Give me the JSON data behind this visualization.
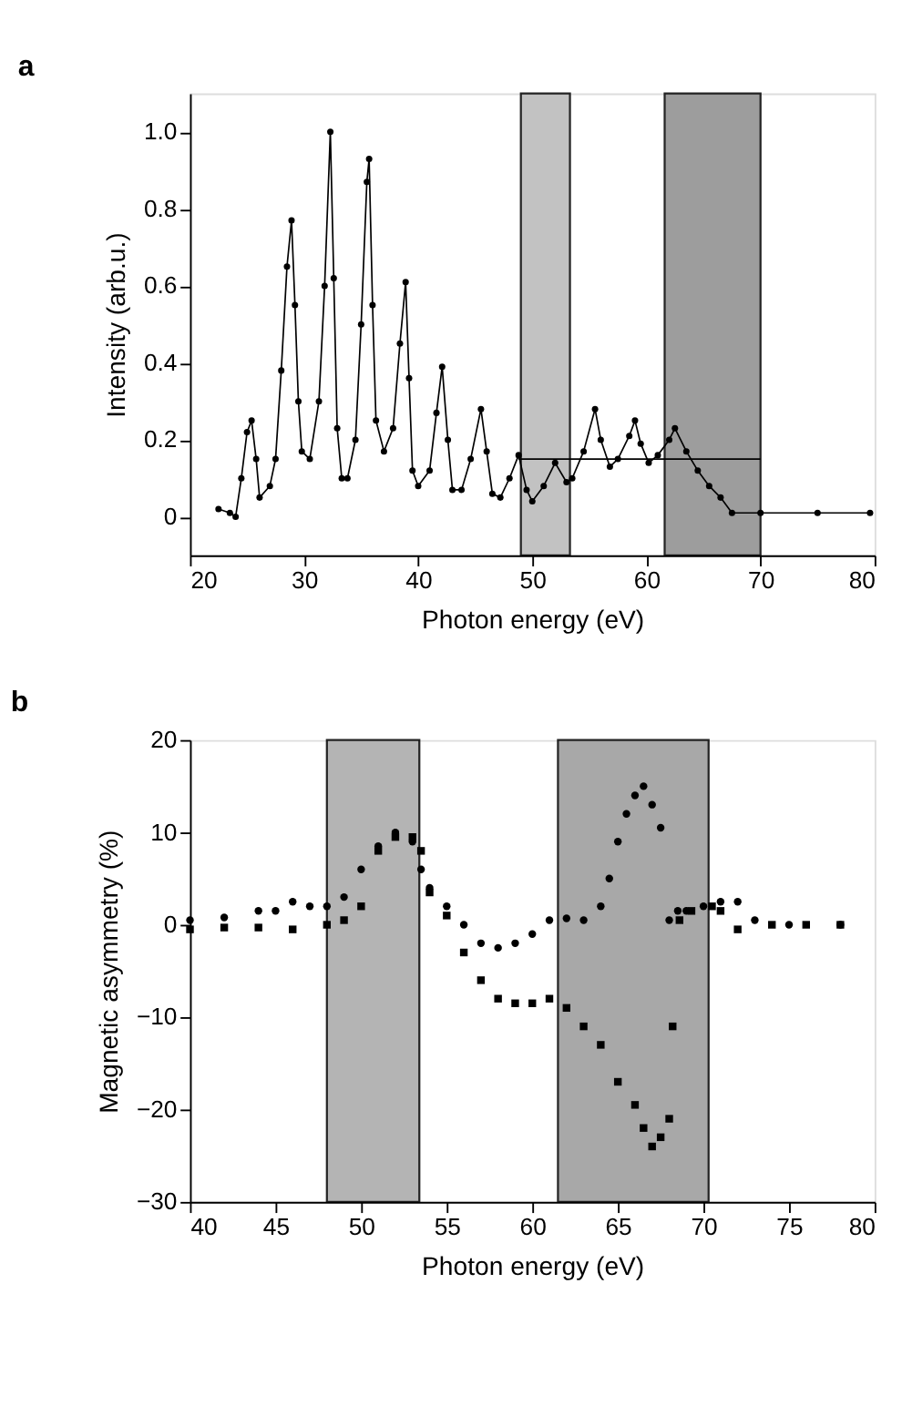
{
  "chart_data": [
    {
      "type": "line",
      "title": "a",
      "xlabel": "Photon energy (eV)",
      "ylabel": "Intensity (arb.u.)",
      "xlim": [
        20,
        80
      ],
      "ylim": [
        -0.1,
        1.1
      ],
      "xticks": [
        20,
        30,
        40,
        50,
        60,
        70,
        80
      ],
      "yticks": [
        0,
        0.2,
        0.4,
        0.6,
        0.8,
        {
          "value": 1,
          "label": "1.0"
        }
      ],
      "grid": false,
      "marker": "circle",
      "series": [
        {
          "color": "#000000",
          "x": [
            22.5,
            23.5,
            24,
            24.5,
            25,
            25.4,
            25.8,
            26.1,
            27,
            27.5,
            28,
            28.5,
            28.9,
            29.2,
            29.5,
            29.8,
            30.5,
            31.3,
            31.8,
            32.3,
            32.6,
            32.9,
            33.3,
            33.8,
            34.5,
            35,
            35.5,
            35.7,
            36,
            36.3,
            37,
            37.8,
            38.4,
            38.9,
            39.2,
            39.5,
            40,
            41,
            41.6,
            42.1,
            42.6,
            43,
            43.8,
            44.6,
            45.5,
            46,
            46.5,
            47.2,
            48,
            48.8,
            49.5,
            50,
            51,
            52,
            53,
            53.5,
            54.5,
            55.5,
            56,
            56.8,
            57.5,
            58.5,
            59,
            59.5,
            60.2,
            61,
            62,
            62.5,
            63.5,
            64.5,
            65.5,
            66.5,
            67.5,
            70,
            75,
            79.6
          ],
          "values": [
            0.02,
            0.01,
            0.0,
            0.1,
            0.22,
            0.25,
            0.15,
            0.05,
            0.08,
            0.15,
            0.38,
            0.65,
            0.77,
            0.55,
            0.3,
            0.17,
            0.15,
            0.3,
            0.6,
            1.0,
            0.62,
            0.23,
            0.1,
            0.1,
            0.2,
            0.5,
            0.87,
            0.93,
            0.55,
            0.25,
            0.17,
            0.23,
            0.45,
            0.61,
            0.36,
            0.12,
            0.08,
            0.12,
            0.27,
            0.39,
            0.2,
            0.07,
            0.07,
            0.15,
            0.28,
            0.17,
            0.06,
            0.05,
            0.1,
            0.16,
            0.07,
            0.04,
            0.08,
            0.14,
            0.09,
            0.1,
            0.17,
            0.28,
            0.2,
            0.13,
            0.15,
            0.21,
            0.25,
            0.19,
            0.14,
            0.16,
            0.2,
            0.23,
            0.17,
            0.12,
            0.08,
            0.05,
            0.01,
            0.01,
            0.01,
            0.01
          ]
        },
        {
          "color": "#000000",
          "marker": "none",
          "x": [
            48.8,
            70
          ],
          "values": [
            0.15,
            0.15
          ]
        }
      ],
      "bands": [
        {
          "axis": "x",
          "from": 49,
          "to": 53.3,
          "color": "#b8b8b8"
        },
        {
          "axis": "x",
          "from": 61.6,
          "to": 70,
          "color": "#8c8c8c"
        }
      ]
    },
    {
      "type": "scatter",
      "title": "b",
      "xlabel": "Photon energy (eV)",
      "ylabel": "Magnetic asymmetry (%)",
      "xlim": [
        40,
        80
      ],
      "ylim": [
        -30,
        20
      ],
      "xticks": [
        40,
        45,
        50,
        55,
        60,
        65,
        70,
        75,
        80
      ],
      "yticks": [
        {
          "value": -30,
          "label": "−30"
        },
        {
          "value": -20,
          "label": "−20"
        },
        {
          "value": -10,
          "label": "−10"
        },
        0,
        10,
        20
      ],
      "grid": false,
      "series": [
        {
          "color": "#000000",
          "marker": "circle",
          "x": [
            40,
            42,
            44,
            45,
            46,
            47,
            48,
            49,
            50,
            51,
            52,
            53,
            53.5,
            54,
            55,
            56,
            57,
            58,
            59,
            60,
            61,
            62,
            63,
            64,
            64.5,
            65,
            65.5,
            66,
            66.5,
            67,
            67.5,
            68,
            68.5,
            69,
            70,
            71,
            72,
            73,
            75,
            78
          ],
          "values": [
            0.5,
            0.8,
            1.5,
            1.5,
            2.5,
            2,
            2,
            3,
            6,
            8.5,
            10,
            9,
            6,
            4,
            2,
            0,
            -2,
            -2.5,
            -2,
            -1,
            0.5,
            0.7,
            0.5,
            2,
            5,
            9,
            12,
            14,
            15,
            13,
            10.5,
            0.5,
            1.5,
            1.5,
            2,
            2.5,
            2.5,
            0.5,
            0,
            0
          ]
        },
        {
          "color": "#000000",
          "marker": "square",
          "x": [
            40,
            42,
            44,
            46,
            48,
            49,
            50,
            51,
            52,
            53,
            53.5,
            54,
            55,
            56,
            57,
            58,
            59,
            60,
            61,
            62,
            63,
            64,
            65,
            66,
            66.5,
            67,
            67.5,
            68,
            68.2,
            68.6,
            69.3,
            70.5,
            71,
            72,
            74,
            76,
            78
          ],
          "values": [
            -0.5,
            -0.3,
            -0.3,
            -0.5,
            0,
            0.5,
            2,
            8,
            9.5,
            9.5,
            8,
            3.5,
            1,
            -3,
            -6,
            -8,
            -8.5,
            -8.5,
            -8,
            -9,
            -11,
            -13,
            -17,
            -19.5,
            -22,
            -24,
            -23,
            -21,
            -11,
            0.5,
            1.5,
            2,
            1.5,
            -0.5,
            0,
            0,
            0
          ]
        }
      ],
      "bands": [
        {
          "axis": "x",
          "from": 48,
          "to": 53.4,
          "color": "#a8a8a8"
        },
        {
          "axis": "x",
          "from": 61.5,
          "to": 70.3,
          "color": "#999999"
        }
      ]
    }
  ]
}
